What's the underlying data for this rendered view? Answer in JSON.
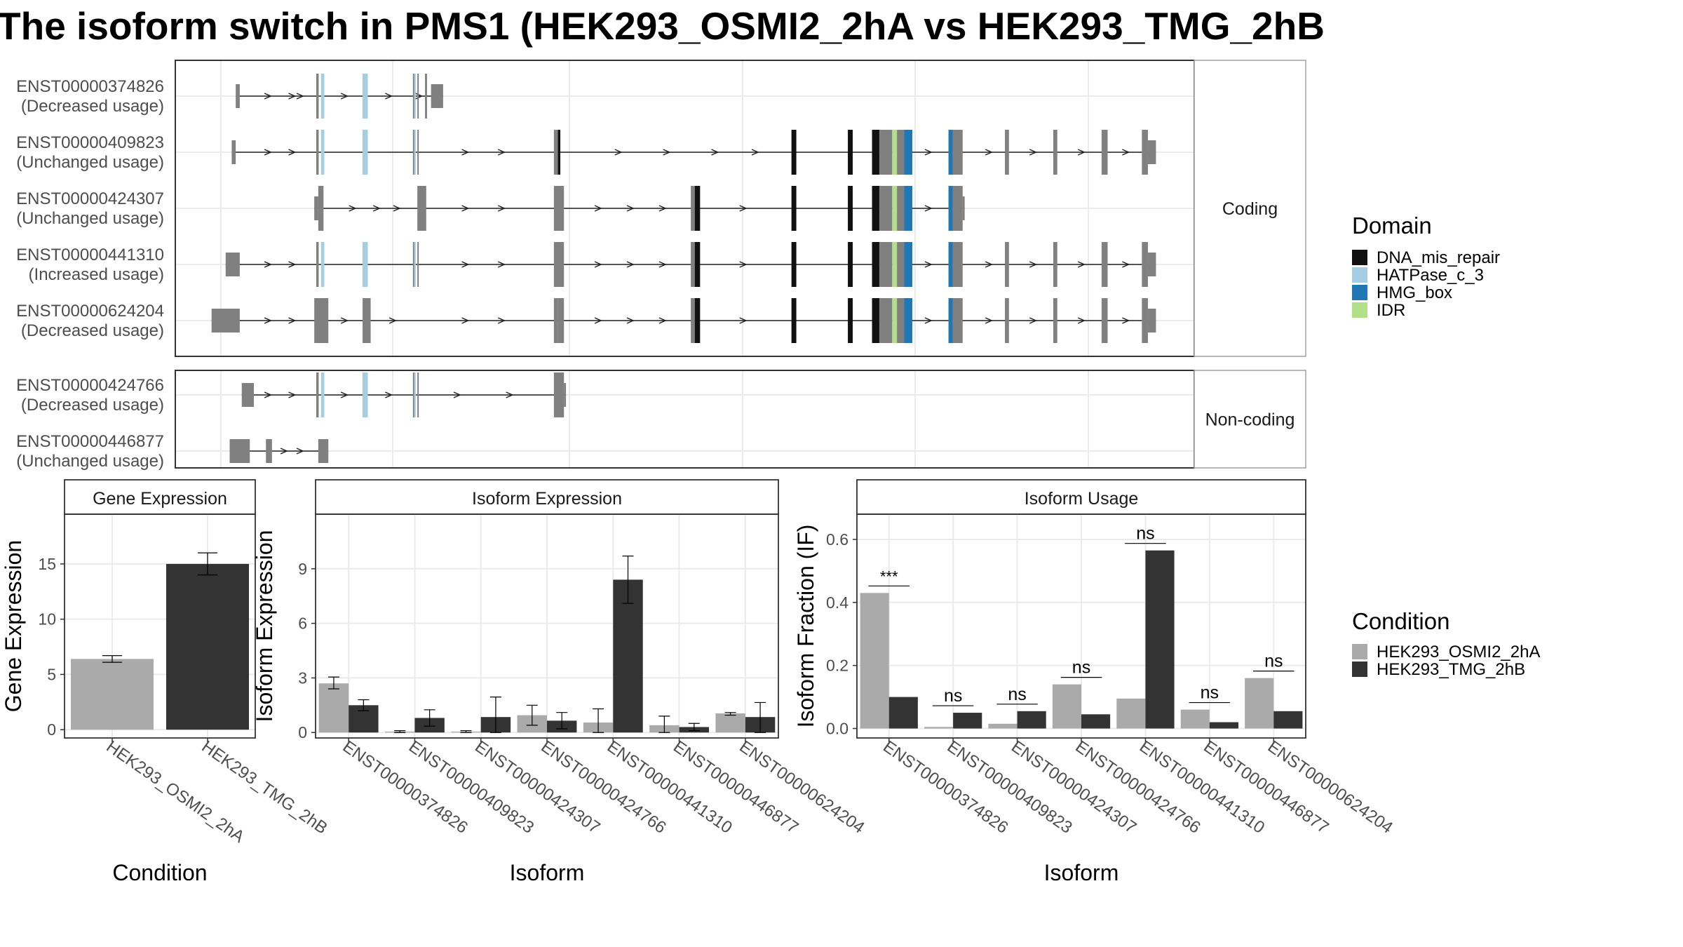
{
  "title": "The isoform switch in PMS1 (HEK293_OSMI2_2hA vs HEK293_TMG_2hB",
  "colors": {
    "DNA_mis_repair": "#111111",
    "HATPase_c_3": "#a6cee3",
    "HMG_box": "#1f78b4",
    "IDR": "#b2df8a",
    "exon": "#808080",
    "cond1": "#aaaaaa",
    "cond2": "#333333"
  },
  "structure": {
    "facets": [
      "Coding",
      "Non-coding"
    ],
    "isoforms": [
      {
        "id": "ENST00000374826",
        "usage": "(Decreased usage)",
        "facet": "Coding",
        "exons": [
          [
            1500,
            1600,
            "s"
          ],
          [
            3500,
            3560,
            "t"
          ],
          [
            3620,
            3680,
            "t"
          ],
          [
            4650,
            4770,
            "t"
          ],
          [
            5900,
            5960,
            "t"
          ],
          [
            6010,
            6030,
            "t"
          ],
          [
            6200,
            6250,
            "t"
          ],
          [
            6350,
            6650,
            "s"
          ]
        ],
        "domains": [
          [
            "HATPase_c_3",
            3620,
            3700
          ],
          [
            "HATPase_c_3",
            4650,
            4780
          ],
          [
            "HATPase_c_3",
            5930,
            5970
          ]
        ],
        "arrows": [
          2300,
          2900,
          3100,
          4200,
          5300,
          6050
        ]
      },
      {
        "id": "ENST00000409823",
        "usage": "(Unchanged usage)",
        "facet": "Coding",
        "exons": [
          [
            1400,
            1500,
            "s"
          ],
          [
            3500,
            3560,
            "t"
          ],
          [
            3620,
            3680,
            "t"
          ],
          [
            4650,
            4770,
            "t"
          ],
          [
            5900,
            5960,
            "t"
          ],
          [
            6010,
            6030,
            "t"
          ],
          [
            9400,
            9500,
            "t"
          ],
          [
            9500,
            9550,
            "t"
          ],
          [
            15300,
            15400,
            "t"
          ],
          [
            16700,
            16800,
            "t"
          ],
          [
            17300,
            17500,
            "t"
          ],
          [
            17500,
            17800,
            "t"
          ],
          [
            17800,
            18200,
            "t"
          ],
          [
            19200,
            19550,
            "t"
          ],
          [
            20600,
            20700,
            "t"
          ],
          [
            21800,
            21900,
            "t"
          ],
          [
            23000,
            23150,
            "t"
          ],
          [
            24000,
            24150,
            "t"
          ],
          [
            24150,
            24350,
            "s"
          ]
        ],
        "domains": [
          [
            "HATPase_c_3",
            3620,
            3700
          ],
          [
            "HATPase_c_3",
            4650,
            4780
          ],
          [
            "HATPase_c_3",
            5930,
            5970
          ],
          [
            "DNA_mis_repair",
            9500,
            9560
          ],
          [
            "DNA_mis_repair",
            15300,
            15420
          ],
          [
            "DNA_mis_repair",
            16700,
            16820
          ],
          [
            "DNA_mis_repair",
            17300,
            17480
          ],
          [
            "IDR",
            17800,
            17920
          ],
          [
            "HMG_box",
            18100,
            18300
          ],
          [
            "HMG_box",
            19200,
            19300
          ]
        ],
        "arrows": [
          2300,
          2900,
          7200,
          8100,
          11000,
          12200,
          13400,
          14400,
          18700,
          20200,
          21300,
          22500,
          23600
        ]
      },
      {
        "id": "ENST00000424307",
        "usage": "(Unchanged usage)",
        "facet": "Coding",
        "exons": [
          [
            3450,
            3550,
            "s"
          ],
          [
            3550,
            3680,
            "t"
          ],
          [
            6010,
            6230,
            "t"
          ],
          [
            9400,
            9650,
            "t"
          ],
          [
            12800,
            12900,
            "t"
          ],
          [
            12900,
            13000,
            "t"
          ],
          [
            15300,
            15400,
            "t"
          ],
          [
            16700,
            16800,
            "t"
          ],
          [
            17300,
            17500,
            "t"
          ],
          [
            17500,
            17800,
            "t"
          ],
          [
            17800,
            18200,
            "t"
          ],
          [
            19200,
            19550,
            "t"
          ],
          [
            19550,
            19600,
            "s"
          ]
        ],
        "domains": [
          [
            "DNA_mis_repair",
            12900,
            13030
          ],
          [
            "DNA_mis_repair",
            15300,
            15420
          ],
          [
            "DNA_mis_repair",
            16700,
            16820
          ],
          [
            "DNA_mis_repair",
            17300,
            17480
          ],
          [
            "IDR",
            17800,
            17920
          ],
          [
            "HMG_box",
            18100,
            18300
          ],
          [
            "HMG_box",
            19200,
            19300
          ]
        ],
        "arrows": [
          4400,
          5000,
          5500,
          7200,
          8100,
          10500,
          11300,
          12100,
          14100,
          18700
        ]
      },
      {
        "id": "ENST00000441310",
        "usage": "(Increased usage)",
        "facet": "Coding",
        "exons": [
          [
            1250,
            1600,
            "s"
          ],
          [
            3500,
            3560,
            "t"
          ],
          [
            3620,
            3680,
            "t"
          ],
          [
            4650,
            4770,
            "t"
          ],
          [
            5900,
            5960,
            "t"
          ],
          [
            6010,
            6030,
            "t"
          ],
          [
            9400,
            9650,
            "t"
          ],
          [
            12800,
            12900,
            "t"
          ],
          [
            12900,
            13000,
            "t"
          ],
          [
            15300,
            15400,
            "t"
          ],
          [
            16700,
            16800,
            "t"
          ],
          [
            17300,
            17500,
            "t"
          ],
          [
            17500,
            17800,
            "t"
          ],
          [
            17800,
            18200,
            "t"
          ],
          [
            19200,
            19550,
            "t"
          ],
          [
            20600,
            20700,
            "t"
          ],
          [
            21800,
            21900,
            "t"
          ],
          [
            23000,
            23150,
            "t"
          ],
          [
            24000,
            24150,
            "t"
          ],
          [
            24150,
            24350,
            "s"
          ]
        ],
        "domains": [
          [
            "HATPase_c_3",
            3620,
            3700
          ],
          [
            "HATPase_c_3",
            4650,
            4780
          ],
          [
            "HATPase_c_3",
            5930,
            5970
          ],
          [
            "DNA_mis_repair",
            12900,
            13030
          ],
          [
            "DNA_mis_repair",
            15300,
            15420
          ],
          [
            "DNA_mis_repair",
            16700,
            16820
          ],
          [
            "DNA_mis_repair",
            17300,
            17480
          ],
          [
            "IDR",
            17800,
            17920
          ],
          [
            "HMG_box",
            18100,
            18300
          ],
          [
            "HMG_box",
            19200,
            19300
          ]
        ],
        "arrows": [
          2300,
          2900,
          7200,
          8100,
          10500,
          11300,
          12100,
          14100,
          18700,
          20200,
          21300,
          22500,
          23600
        ]
      },
      {
        "id": "ENST00000624204",
        "usage": "(Decreased usage)",
        "facet": "Coding",
        "exons": [
          [
            900,
            1600,
            "s"
          ],
          [
            3450,
            3800,
            "t"
          ],
          [
            4650,
            4850,
            "t"
          ],
          [
            9400,
            9500,
            "t"
          ],
          [
            9500,
            9650,
            "t"
          ],
          [
            12800,
            12900,
            "t"
          ],
          [
            12900,
            13000,
            "t"
          ],
          [
            15300,
            15400,
            "t"
          ],
          [
            16700,
            16800,
            "t"
          ],
          [
            17300,
            17500,
            "t"
          ],
          [
            17500,
            17800,
            "t"
          ],
          [
            17800,
            18200,
            "t"
          ],
          [
            19200,
            19550,
            "t"
          ],
          [
            20600,
            20700,
            "t"
          ],
          [
            21800,
            21900,
            "t"
          ],
          [
            23000,
            23150,
            "t"
          ],
          [
            24000,
            24150,
            "t"
          ],
          [
            24150,
            24350,
            "s"
          ]
        ],
        "domains": [
          [
            "DNA_mis_repair",
            12900,
            13030
          ],
          [
            "DNA_mis_repair",
            15300,
            15420
          ],
          [
            "DNA_mis_repair",
            16700,
            16820
          ],
          [
            "DNA_mis_repair",
            17300,
            17480
          ],
          [
            "IDR",
            17800,
            17920
          ],
          [
            "HMG_box",
            18100,
            18300
          ],
          [
            "HMG_box",
            19200,
            19300
          ]
        ],
        "arrows": [
          2300,
          2900,
          4200,
          5400,
          7200,
          8100,
          10500,
          11300,
          12100,
          14100,
          18700,
          20200,
          21300,
          22500,
          23600
        ]
      },
      {
        "id": "ENST00000424766",
        "usage": "(Decreased usage)",
        "facet": "Non-coding",
        "exons": [
          [
            1650,
            1950,
            "s"
          ],
          [
            3500,
            3560,
            "t"
          ],
          [
            3620,
            3680,
            "t"
          ],
          [
            4650,
            4770,
            "t"
          ],
          [
            5900,
            5960,
            "t"
          ],
          [
            6010,
            6030,
            "t"
          ],
          [
            9400,
            9650,
            "t"
          ],
          [
            9650,
            9700,
            "s"
          ]
        ],
        "domains": [
          [
            "HATPase_c_3",
            3620,
            3700
          ],
          [
            "HATPase_c_3",
            4650,
            4780
          ],
          [
            "HATPase_c_3",
            5930,
            5970
          ]
        ],
        "arrows": [
          2300,
          2900,
          4200,
          5300,
          7000,
          8300
        ]
      },
      {
        "id": "ENST00000446877",
        "usage": "(Unchanged usage)",
        "facet": "Non-coding",
        "exons": [
          [
            1350,
            1850,
            "s"
          ],
          [
            2250,
            2400,
            "s"
          ],
          [
            3550,
            3800,
            "s"
          ]
        ],
        "domains": [],
        "arrows": [
          2700,
          3100
        ]
      }
    ]
  },
  "legend_domain": {
    "title": "Domain",
    "items": [
      {
        "key": "DNA_mis_repair",
        "label": "DNA_mis_repair"
      },
      {
        "key": "HATPase_c_3",
        "label": "HATPase_c_3"
      },
      {
        "key": "HMG_box",
        "label": "HMG_box"
      },
      {
        "key": "IDR",
        "label": "IDR"
      }
    ]
  },
  "legend_condition": {
    "title": "Condition",
    "items": [
      {
        "key": "cond1",
        "label": "HEK293_OSMI2_2hA"
      },
      {
        "key": "cond2",
        "label": "HEK293_TMG_2hB"
      }
    ]
  },
  "chart_data": [
    {
      "type": "bar",
      "title": "Gene Expression",
      "xlabel": "Condition",
      "ylabel": "Gene Expression",
      "categories": [
        "HEK293_OSMI2_2hA",
        "HEK293_TMG_2hB"
      ],
      "values": [
        6.4,
        15.0
      ],
      "errors": [
        [
          6.1,
          6.7
        ],
        [
          14.0,
          16.0
        ]
      ],
      "ylim": [
        -0.75,
        19.5
      ],
      "yticks": [
        0,
        5,
        10,
        15
      ]
    },
    {
      "type": "bar",
      "title": "Isoform Expression",
      "xlabel": "Isoform",
      "ylabel": "Isoform Expression",
      "categories": [
        "ENST00000374826",
        "ENST00000409823",
        "ENST00000424307",
        "ENST00000424766",
        "ENST00000441310",
        "ENST00000446877",
        "ENST00000624204"
      ],
      "series": [
        {
          "name": "HEK293_OSMI2_2hA",
          "values": [
            2.7,
            0.05,
            0.05,
            0.95,
            0.55,
            0.4,
            1.05
          ],
          "errors": [
            [
              2.4,
              3.05
            ],
            [
              0.0,
              0.1
            ],
            [
              0.0,
              0.1
            ],
            [
              0.4,
              1.5
            ],
            [
              0.0,
              1.3
            ],
            [
              0.0,
              0.9
            ],
            [
              0.95,
              1.1
            ]
          ]
        },
        {
          "name": "HEK293_TMG_2hB",
          "values": [
            1.5,
            0.8,
            0.85,
            0.65,
            8.4,
            0.3,
            0.85
          ],
          "errors": [
            [
              1.2,
              1.8
            ],
            [
              0.35,
              1.25
            ],
            [
              0.0,
              1.95
            ],
            [
              0.2,
              1.1
            ],
            [
              7.1,
              9.7
            ],
            [
              0.1,
              0.5
            ],
            [
              0.0,
              1.65
            ]
          ]
        }
      ],
      "ylim": [
        -0.3,
        12.0
      ],
      "yticks": [
        0,
        3,
        6,
        9
      ]
    },
    {
      "type": "bar",
      "title": "Isoform Usage",
      "xlabel": "Isoform",
      "ylabel": "Isoform Fraction (IF)",
      "categories": [
        "ENST00000374826",
        "ENST00000409823",
        "ENST00000424307",
        "ENST00000424766",
        "ENST00000441310",
        "ENST00000446877",
        "ENST00000624204"
      ],
      "series": [
        {
          "name": "HEK293_OSMI2_2hA",
          "values": [
            0.43,
            0.005,
            0.015,
            0.14,
            0.095,
            0.06,
            0.16
          ]
        },
        {
          "name": "HEK293_TMG_2hB",
          "values": [
            0.1,
            0.05,
            0.055,
            0.045,
            0.565,
            0.02,
            0.055
          ]
        }
      ],
      "significance": [
        "***",
        "ns",
        "ns",
        "ns",
        "ns",
        "ns",
        "ns"
      ],
      "ylim": [
        -0.03,
        0.68
      ],
      "yticks": [
        "0.0",
        "0.2",
        "0.4",
        "0.6"
      ]
    }
  ]
}
